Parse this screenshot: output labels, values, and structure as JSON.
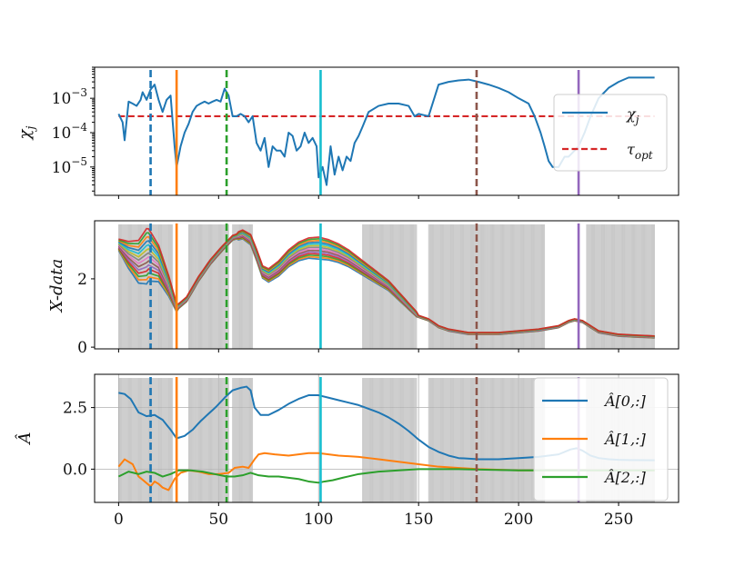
{
  "chart_data": [
    {
      "type": "line",
      "panel": "top",
      "ylabel": "χ_j",
      "yscale": "log",
      "ylim": [
        1.5e-06,
        0.008
      ],
      "xlim": [
        -12,
        280
      ],
      "xticks": [
        0,
        50,
        100,
        150,
        200,
        250
      ],
      "yticks": [
        {
          "value": 1e-05,
          "base": "10",
          "exp": "−5"
        },
        {
          "value": 0.0001,
          "base": "10",
          "exp": "−4"
        },
        {
          "value": 0.001,
          "base": "10",
          "exp": "−3"
        }
      ],
      "series": [
        {
          "name": "χ_j",
          "color": "#1f77b4",
          "x": [
            0,
            2,
            3,
            5,
            7,
            9,
            11,
            12,
            14,
            16,
            18,
            20,
            22,
            24,
            26,
            28,
            29,
            31,
            33,
            35,
            37,
            39,
            41,
            43,
            45,
            47,
            49,
            51,
            53,
            55,
            57,
            59,
            61,
            63,
            65,
            67,
            69,
            71,
            73,
            75,
            77,
            79,
            81,
            83,
            85,
            87,
            89,
            91,
            93,
            95,
            97,
            99,
            100,
            102,
            104,
            106,
            108,
            110,
            112,
            114,
            116,
            118,
            120,
            122,
            125,
            130,
            135,
            140,
            145,
            148,
            150,
            155,
            160,
            165,
            170,
            175,
            180,
            185,
            190,
            195,
            200,
            205,
            208,
            211,
            213,
            215,
            217,
            220,
            223,
            225,
            228,
            230,
            233,
            236,
            240,
            245,
            250,
            255,
            260,
            268
          ],
          "y": [
            0.00035,
            0.0002,
            6e-05,
            0.0008,
            0.0007,
            0.0006,
            0.0009,
            0.0015,
            0.0009,
            0.0018,
            0.0025,
            0.0009,
            0.0004,
            0.0009,
            0.0012,
            4e-05,
            1e-05,
            4e-05,
            0.0001,
            0.00018,
            0.0004,
            0.0006,
            0.0007,
            0.0008,
            0.0007,
            0.0008,
            0.0009,
            0.0008,
            0.0019,
            0.0012,
            0.0003,
            0.0003,
            0.00035,
            0.0003,
            0.0002,
            0.0003,
            5e-05,
            3e-05,
            7e-05,
            1e-05,
            4e-05,
            3e-05,
            3e-05,
            2e-05,
            0.0001,
            8e-05,
            3e-05,
            4e-05,
            0.0001,
            5e-05,
            7e-05,
            4e-05,
            5e-06,
            1e-05,
            3e-06,
            4e-05,
            6e-06,
            2e-05,
            8e-06,
            2e-05,
            1.5e-05,
            5e-05,
            8e-05,
            0.00015,
            0.0004,
            0.0006,
            0.0007,
            0.0007,
            0.0006,
            0.0003,
            0.00035,
            0.0003,
            0.0025,
            0.003,
            0.0033,
            0.0035,
            0.003,
            0.0025,
            0.002,
            0.0015,
            0.001,
            0.0007,
            0.0003,
            0.0001,
            4e-05,
            1.5e-05,
            1e-05,
            1e-05,
            2e-05,
            2e-05,
            3e-05,
            4e-05,
            0.0001,
            0.0003,
            0.001,
            0.002,
            0.003,
            0.004,
            0.004,
            0.004
          ]
        }
      ],
      "hlines": [
        {
          "name": "τ_opt",
          "value": 0.0003,
          "color": "#d62728",
          "style": "dashed"
        }
      ],
      "legend": {
        "position": "right",
        "entries": [
          {
            "label": "χ",
            "sub": "j"
          },
          {
            "label": "τ",
            "sub": "opt"
          }
        ]
      }
    },
    {
      "type": "line",
      "panel": "middle",
      "ylabel": "X-data",
      "ylim": [
        -0.05,
        3.7
      ],
      "xlim": [
        -12,
        280
      ],
      "yticks": [
        0,
        2
      ],
      "shaded_regions_x": [
        [
          0,
          27
        ],
        [
          35,
          55
        ],
        [
          57,
          67
        ],
        [
          122,
          149
        ],
        [
          155,
          213
        ],
        [
          234,
          268
        ]
      ],
      "n_series": 14,
      "base_curve": {
        "x": [
          0,
          5,
          10,
          15,
          20,
          25,
          29,
          34,
          40,
          46,
          52,
          57,
          62,
          66,
          69,
          72,
          75,
          80,
          85,
          90,
          95,
          100,
          105,
          110,
          115,
          120,
          125,
          130,
          135,
          140,
          145,
          150,
          155,
          160,
          165,
          170,
          175,
          180,
          190,
          200,
          210,
          215,
          220,
          225,
          228,
          232,
          236,
          240,
          250,
          260,
          268
        ],
        "y": [
          3.0,
          2.7,
          2.5,
          2.7,
          2.45,
          1.8,
          1.15,
          1.4,
          2.0,
          2.5,
          2.9,
          3.2,
          3.3,
          3.15,
          2.7,
          2.2,
          2.1,
          2.3,
          2.6,
          2.8,
          2.9,
          2.9,
          2.85,
          2.75,
          2.6,
          2.4,
          2.2,
          2.0,
          1.8,
          1.5,
          1.2,
          0.9,
          0.8,
          0.6,
          0.5,
          0.45,
          0.4,
          0.4,
          0.4,
          0.45,
          0.5,
          0.55,
          0.6,
          0.75,
          0.8,
          0.75,
          0.6,
          0.45,
          0.35,
          0.32,
          0.3
        ]
      },
      "series_colors": [
        "#1f77b4",
        "#ff7f0e",
        "#2ca02c",
        "#d62728",
        "#9467bd",
        "#8c564b",
        "#e377c2",
        "#7f7f7f",
        "#bcbd22",
        "#17becf",
        "#1f77b4",
        "#ff7f0e",
        "#2ca02c",
        "#d62728"
      ]
    },
    {
      "type": "line",
      "panel": "bottom",
      "ylabel": "Â",
      "ylim": [
        -1.35,
        3.85
      ],
      "xlim": [
        -12,
        280
      ],
      "xticks": [
        0,
        50,
        100,
        150,
        200,
        250
      ],
      "yticks": [
        {
          "value": 0,
          "label": "0.0"
        },
        {
          "value": 2.5,
          "label": "2.5"
        }
      ],
      "grid": true,
      "shaded_regions_x": [
        [
          0,
          27
        ],
        [
          35,
          55
        ],
        [
          57,
          67
        ],
        [
          122,
          149
        ],
        [
          155,
          213
        ],
        [
          234,
          268
        ]
      ],
      "series": [
        {
          "name": "Â[0,:]",
          "color": "#1f77b4",
          "x": [
            0,
            3,
            6,
            10,
            14,
            18,
            22,
            26,
            29,
            33,
            37,
            41,
            45,
            49,
            53,
            57,
            61,
            64,
            66,
            68,
            71,
            75,
            80,
            85,
            90,
            95,
            100,
            105,
            110,
            115,
            120,
            125,
            130,
            135,
            140,
            145,
            150,
            155,
            160,
            165,
            170,
            180,
            190,
            200,
            210,
            220,
            226,
            229,
            232,
            236,
            240,
            245,
            250,
            255,
            268
          ],
          "y": [
            3.1,
            3.05,
            2.85,
            2.3,
            2.15,
            2.2,
            2.0,
            1.6,
            1.25,
            1.35,
            1.6,
            1.95,
            2.25,
            2.55,
            2.9,
            3.2,
            3.3,
            3.35,
            3.2,
            2.5,
            2.2,
            2.2,
            2.4,
            2.65,
            2.85,
            3.0,
            3.0,
            2.9,
            2.8,
            2.7,
            2.6,
            2.45,
            2.3,
            2.1,
            1.85,
            1.55,
            1.2,
            0.9,
            0.7,
            0.55,
            0.45,
            0.4,
            0.4,
            0.45,
            0.5,
            0.6,
            0.8,
            0.85,
            0.75,
            0.55,
            0.45,
            0.4,
            0.38,
            0.37,
            0.36
          ]
        },
        {
          "name": "Â[1,:]",
          "color": "#ff7f0e",
          "x": [
            0,
            3,
            7,
            10,
            13,
            16,
            18,
            20,
            22,
            25,
            28,
            31,
            35,
            40,
            45,
            50,
            55,
            58,
            62,
            65,
            68,
            70,
            73,
            78,
            85,
            90,
            95,
            100,
            105,
            110,
            120,
            125,
            130,
            140,
            150,
            160,
            180,
            200,
            220,
            235,
            250,
            268
          ],
          "y": [
            0.1,
            0.4,
            0.2,
            -0.3,
            -0.5,
            -0.7,
            -0.5,
            -0.6,
            -0.75,
            -0.85,
            -0.4,
            -0.15,
            -0.05,
            -0.1,
            -0.2,
            -0.2,
            -0.15,
            0.05,
            0.1,
            0.05,
            0.4,
            0.6,
            0.65,
            0.6,
            0.55,
            0.6,
            0.65,
            0.65,
            0.6,
            0.55,
            0.5,
            0.45,
            0.4,
            0.3,
            0.2,
            0.1,
            0.0,
            -0.05,
            -0.05,
            -0.05,
            -0.05,
            -0.05
          ]
        },
        {
          "name": "Â[2,:]",
          "color": "#2ca02c",
          "x": [
            0,
            5,
            10,
            14,
            18,
            22,
            26,
            30,
            36,
            42,
            48,
            54,
            58,
            62,
            66,
            70,
            75,
            80,
            85,
            90,
            95,
            100,
            103,
            107,
            112,
            120,
            130,
            140,
            150,
            170,
            200,
            230,
            268
          ],
          "y": [
            -0.3,
            -0.1,
            -0.2,
            -0.1,
            -0.15,
            -0.3,
            -0.2,
            -0.05,
            -0.05,
            -0.1,
            -0.2,
            -0.3,
            -0.3,
            -0.25,
            -0.15,
            -0.25,
            -0.3,
            -0.3,
            -0.35,
            -0.4,
            -0.5,
            -0.55,
            -0.5,
            -0.45,
            -0.35,
            -0.2,
            -0.1,
            -0.05,
            0.0,
            0.0,
            -0.05,
            -0.05,
            -0.05
          ]
        }
      ],
      "legend": {
        "position": "right",
        "entries": [
          {
            "label": "Â[0,:]"
          },
          {
            "label": "Â[1,:]"
          },
          {
            "label": "Â[2,:]"
          }
        ]
      }
    }
  ],
  "vertical_markers": [
    {
      "x": 16,
      "color": "#1f77b4",
      "style": "dashed"
    },
    {
      "x": 29,
      "color": "#ff7f0e",
      "style": "solid"
    },
    {
      "x": 54,
      "color": "#2ca02c",
      "style": "dashed"
    },
    {
      "x": 101,
      "color": "#17becf",
      "style": "solid"
    },
    {
      "x": 179,
      "color": "#8c564b",
      "style": "dashed"
    },
    {
      "x": 230,
      "color": "#9467bd",
      "style": "solid"
    }
  ],
  "legend_top": {
    "chi": "χ",
    "chi_sub": "j",
    "tau": "τ",
    "tau_sub": "opt"
  },
  "labels": {
    "top_y": "χ",
    "top_y_sub": "j",
    "mid_y": "X-data",
    "bot_y": "Â"
  }
}
